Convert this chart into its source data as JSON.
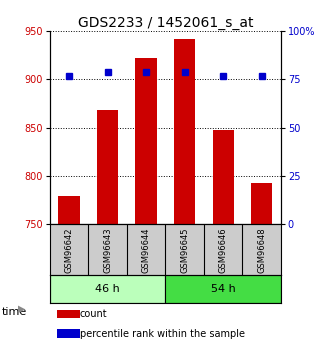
{
  "title": "GDS2233 / 1452061_s_at",
  "samples": [
    "GSM96642",
    "GSM96643",
    "GSM96644",
    "GSM96645",
    "GSM96646",
    "GSM96648"
  ],
  "counts": [
    779,
    868,
    922,
    942,
    848,
    793
  ],
  "percentiles": [
    77,
    79,
    79,
    79,
    77,
    77
  ],
  "groups": [
    {
      "label": "46 h",
      "samples": [
        0,
        1,
        2
      ],
      "color": "#aaffaa"
    },
    {
      "label": "54 h",
      "samples": [
        3,
        4,
        5
      ],
      "color": "#44ee44"
    }
  ],
  "ylim_left": [
    750,
    950
  ],
  "ylim_right": [
    0,
    100
  ],
  "yticks_left": [
    750,
    800,
    850,
    900,
    950
  ],
  "yticks_right": [
    0,
    25,
    50,
    75,
    100
  ],
  "bar_color": "#cc0000",
  "dot_color": "#0000cc",
  "bar_width": 0.55,
  "grid_color": "#000000",
  "label_bg": "#cccccc",
  "group_colors": [
    "#bbffbb",
    "#44dd44"
  ],
  "title_fontsize": 10,
  "tick_fontsize": 7,
  "sample_fontsize": 6,
  "legend_fontsize": 7,
  "group_label_fontsize": 8,
  "time_label_fontsize": 8
}
